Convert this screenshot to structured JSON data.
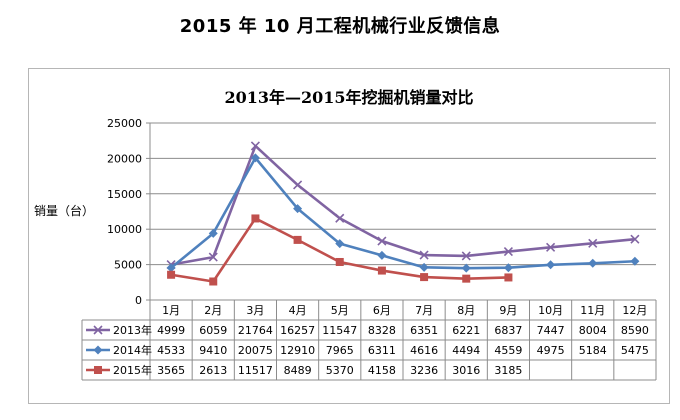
{
  "page": {
    "title": "2015 年 10 月工程机械行业反馈信息"
  },
  "chart_data": {
    "type": "line",
    "title": "2013年—2015年挖掘机销量对比",
    "ylabel": "销量（台）",
    "xlabel": "",
    "ylim": [
      0,
      25000
    ],
    "yticks": [
      0,
      5000,
      10000,
      15000,
      20000,
      25000
    ],
    "grid": true,
    "legend": "data-table",
    "categories": [
      "1月",
      "2月",
      "3月",
      "4月",
      "5月",
      "6月",
      "7月",
      "8月",
      "9月",
      "10月",
      "11月",
      "12月"
    ],
    "series": [
      {
        "name": "2013年",
        "color": "#8064a2",
        "marker": "x",
        "values": [
          4999,
          6059,
          21764,
          16257,
          11547,
          8328,
          6351,
          6221,
          6837,
          7447,
          8004,
          8590
        ]
      },
      {
        "name": "2014年",
        "color": "#4f81bd",
        "marker": "diamond",
        "values": [
          4533,
          9410,
          20075,
          12910,
          7965,
          6311,
          4616,
          4494,
          4559,
          4975,
          5184,
          5475
        ]
      },
      {
        "name": "2015年",
        "color": "#c0504d",
        "marker": "square",
        "values": [
          3565,
          2613,
          11517,
          8489,
          5370,
          4158,
          3236,
          3016,
          3185,
          null,
          null,
          null
        ]
      }
    ]
  }
}
